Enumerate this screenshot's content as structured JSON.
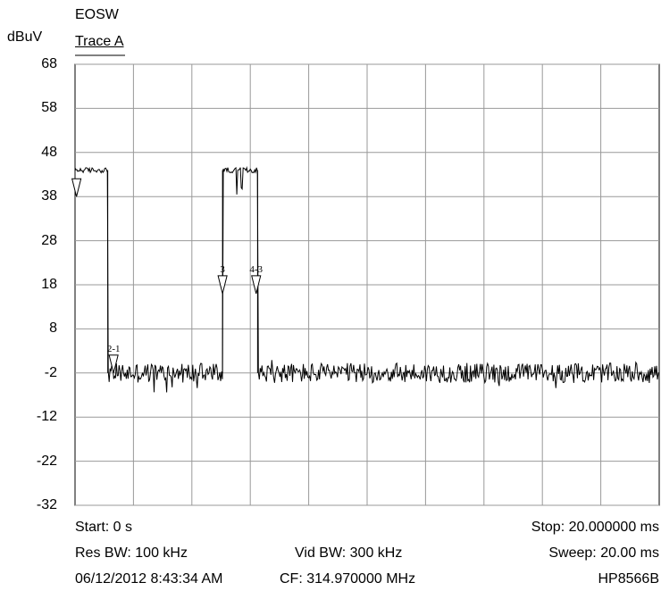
{
  "header": {
    "mode": "EOSW",
    "y_unit": "dBuV",
    "trace_label": "Trace A"
  },
  "footer": {
    "start": "Start: 0 s",
    "stop": "Stop: 20.000000 ms",
    "res_bw": "Res BW: 100 kHz",
    "vid_bw": "Vid BW: 300 kHz",
    "sweep": "Sweep: 20.00 ms",
    "timestamp": "06/12/2012 8:43:34 AM",
    "cf": "CF: 314.970000 MHz",
    "instrument": "HP8566B"
  },
  "chart_data": {
    "type": "line",
    "title": "",
    "xlabel": "",
    "ylabel": "dBuV",
    "xlim": [
      0,
      20
    ],
    "x_unit": "ms",
    "ylim": [
      -32,
      68
    ],
    "yticks": [
      68,
      58,
      48,
      38,
      28,
      18,
      8,
      -2,
      -12,
      -22,
      -32
    ],
    "x_divisions": 10,
    "grid": true,
    "series": [
      {
        "name": "Trace A",
        "segments": [
          {
            "x": [
              0.0,
              0.3,
              1.1,
              1.12
            ],
            "y": [
              44,
              44,
              44,
              44
            ]
          },
          {
            "x": [
              1.15,
              1.3,
              5.0,
              5.05
            ],
            "y": [
              -2,
              -2,
              -2,
              -2
            ]
          },
          {
            "x": [
              5.1,
              6.2
            ],
            "y": [
              44,
              44
            ]
          },
          {
            "x": [
              6.3,
              20.0
            ],
            "y": [
              -2,
              -2
            ]
          }
        ],
        "on_level": 44,
        "off_level": -2,
        "transitions": [
          {
            "x": 1.12,
            "from": 44,
            "to": -2
          },
          {
            "x": 5.05,
            "from": -2,
            "to": 44
          },
          {
            "x": 6.25,
            "from": 44,
            "to": -2
          }
        ]
      }
    ],
    "markers": [
      {
        "label": "",
        "x": 0.05,
        "y": 38
      },
      {
        "label": "2-1",
        "x": 1.32,
        "y": -2
      },
      {
        "label": "3",
        "x": 5.05,
        "y": 16
      },
      {
        "label": "4-3",
        "x": 6.2,
        "y": 16
      }
    ]
  }
}
